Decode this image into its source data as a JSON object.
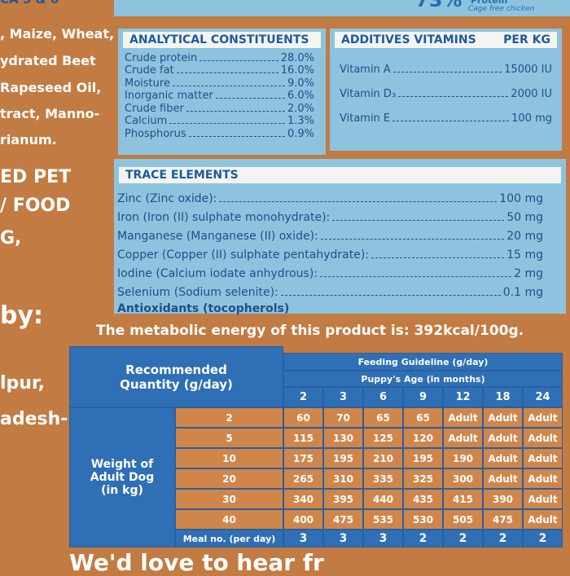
{
  "top": {
    "left": "CA 5 & 6",
    "percent": "73%",
    "protein": "Protein",
    "chicken": "Cage free chicken"
  },
  "left_column": [
    ", Maize, Wheat,",
    "ydrated Beet",
    "Rapeseed Oil,",
    "tract, Manno-",
    "rianum.",
    "ED PET",
    "/ FOOD",
    "G,",
    "by:",
    "lpur,",
    "adesh-"
  ],
  "analytical": {
    "title": "ANALYTICAL CONSTITUENTS",
    "rows": [
      {
        "name": "Crude protein",
        "value": "28.0%"
      },
      {
        "name": "Crude fat",
        "value": "16.0%"
      },
      {
        "name": "Moisture",
        "value": "9.0%"
      },
      {
        "name": "Inorganic matter",
        "value": "6.0%"
      },
      {
        "name": "Crude fiber",
        "value": "2.0%"
      },
      {
        "name": "Calcium",
        "value": "1.3%"
      },
      {
        "name": "Phosphorus",
        "value": "0.9%"
      }
    ]
  },
  "additives": {
    "title": "ADDITIVES VITAMINS",
    "unit": "PER KG",
    "rows": [
      {
        "name": "Vitamin A",
        "value": "15000 IU"
      },
      {
        "name": "Vitamin D₃",
        "value": "2000 IU"
      },
      {
        "name": "Vitamin E",
        "value": "100 mg"
      }
    ]
  },
  "trace": {
    "title": "TRACE ELEMENTS",
    "rows": [
      {
        "name": "Zinc (Zinc oxide):",
        "value": "100 mg"
      },
      {
        "name": "Iron (Iron (II) sulphate monohydrate):",
        "value": "50 mg"
      },
      {
        "name": "Manganese (Manganese (II) oxide):",
        "value": "20 mg"
      },
      {
        "name": "Copper (Copper (II) sulphate pentahydrate):",
        "value": "15 mg"
      },
      {
        "name": "Iodine (Calcium iodate anhydrous):",
        "value": "2 mg"
      },
      {
        "name": "Selenium (Sodium selenite):",
        "value": "0.1 mg"
      }
    ],
    "antioxidants": "Antioxidants (tocopherols)"
  },
  "energy": "The metabolic energy of this product is: 392kcal/100g.",
  "table": {
    "corner": "Recommended Quantity (g/day)",
    "guideline": "Feeding Guideline (g/day)",
    "age_header": "Puppy's Age (in months)",
    "ages": [
      "2",
      "3",
      "6",
      "9",
      "12",
      "18",
      "24"
    ],
    "weight_header": "Weight of Adult Dog (in kg)",
    "weights": [
      "2",
      "5",
      "10",
      "20",
      "30",
      "40"
    ],
    "rows": [
      [
        "60",
        "70",
        "65",
        "65",
        "Adult",
        "Adult",
        "Adult"
      ],
      [
        "115",
        "130",
        "125",
        "120",
        "Adult",
        "Adult",
        "Adult"
      ],
      [
        "175",
        "195",
        "210",
        "195",
        "190",
        "Adult",
        "Adult"
      ],
      [
        "265",
        "310",
        "335",
        "325",
        "300",
        "Adult",
        "Adult"
      ],
      [
        "340",
        "395",
        "440",
        "435",
        "415",
        "390",
        "Adult"
      ],
      [
        "400",
        "475",
        "535",
        "530",
        "505",
        "475",
        "Adult"
      ]
    ],
    "meal_label": "Meal no. (per day)",
    "meals": [
      "3",
      "3",
      "3",
      "2",
      "2",
      "2",
      "2"
    ]
  },
  "bottom": "We'd love to hear fr"
}
